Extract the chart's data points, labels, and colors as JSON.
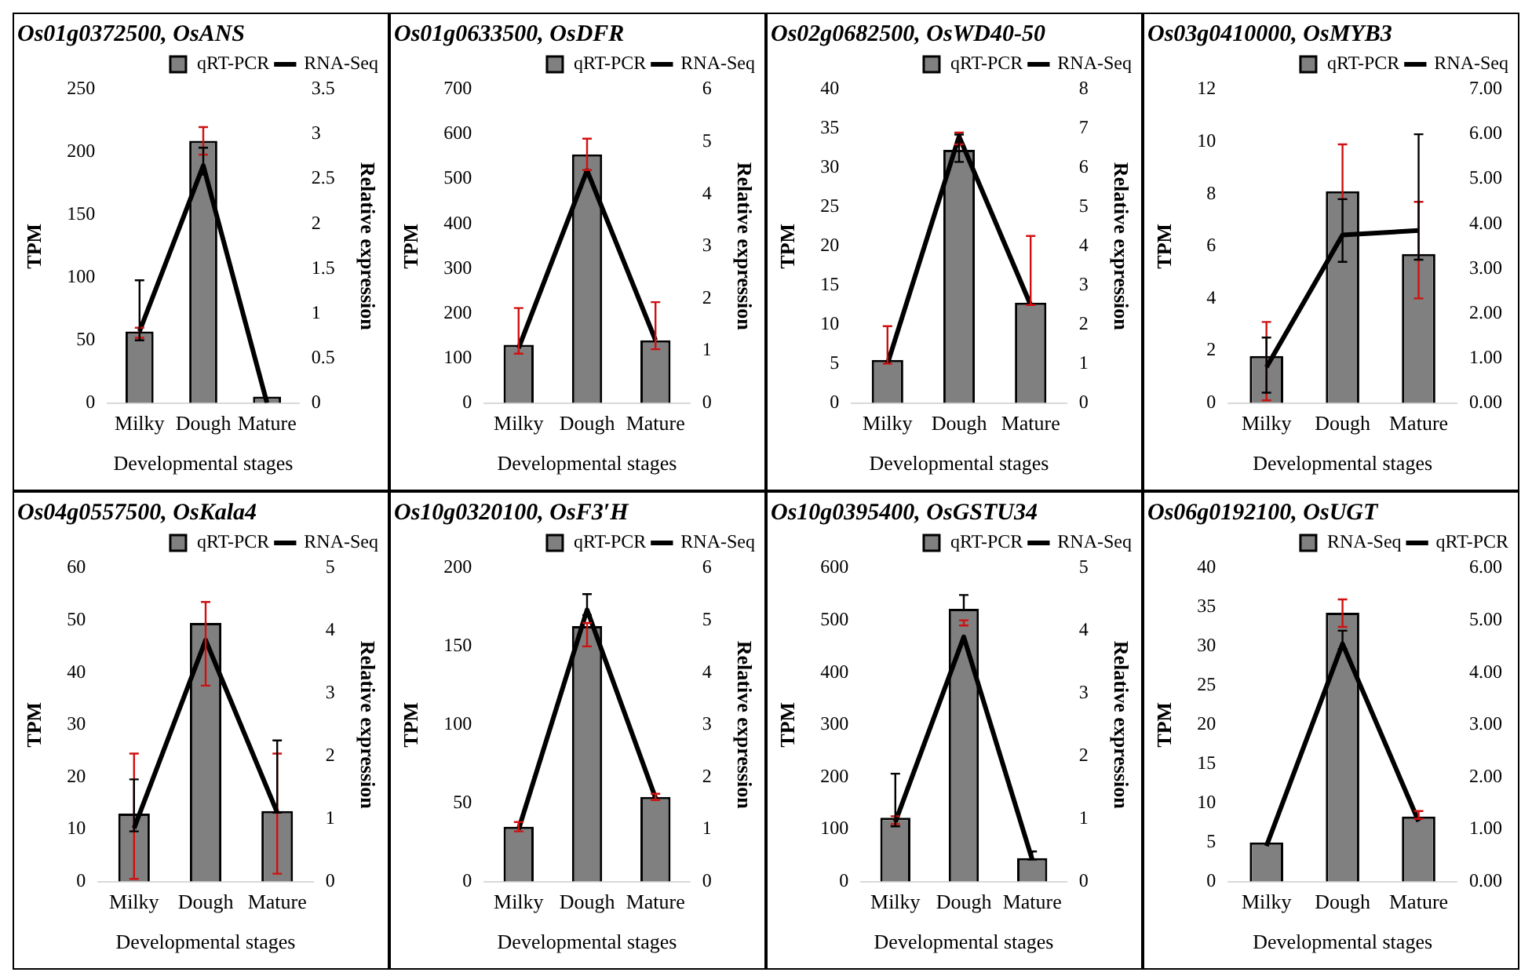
{
  "chart_data": [
    {
      "type": "bar",
      "title": "Os01g0372500, OsANS",
      "categories": [
        "Milky",
        "Dough",
        "Mature"
      ],
      "xlabel": "Developmental stages",
      "ylabel": "TPM",
      "y2label": "Relative expression",
      "ylim": [
        0,
        250
      ],
      "yticks": [
        0,
        50,
        100,
        150,
        200,
        250
      ],
      "y2lim": [
        0,
        3.5
      ],
      "y2ticks": [
        0,
        0.5,
        1,
        1.5,
        2,
        2.5,
        3,
        3.5
      ],
      "legend": "top right",
      "grid": false,
      "series": [
        {
          "name": "qRT-PCR",
          "color": "#808080",
          "values": [
            57,
            209,
            5
          ],
          "errors": [
            [
              52,
              60
            ],
            [
              198,
              220
            ],
            null
          ]
        },
        {
          "name": "RNA-Seq",
          "type": "line",
          "axis": "y2",
          "color": "#000000",
          "values": [
            0.8,
            2.65,
            0
          ],
          "errors": [
            [
              0.7,
              1.37
            ],
            [
              2.55,
              2.85
            ],
            null
          ]
        }
      ]
    },
    {
      "type": "bar",
      "title": "Os01g0633500, OsDFR",
      "categories": [
        "Milky",
        "Dough",
        "Mature"
      ],
      "xlabel": "Developmental stages",
      "ylabel": "TPM",
      "y2label": "Relative expression",
      "ylim": [
        0,
        700
      ],
      "yticks": [
        0,
        100,
        200,
        300,
        400,
        500,
        600,
        700
      ],
      "y2lim": [
        0,
        6
      ],
      "y2ticks": [
        0,
        1,
        2,
        3,
        4,
        5,
        6
      ],
      "legend": "top right",
      "grid": false,
      "series": [
        {
          "name": "qRT-PCR",
          "color": "#808080",
          "values": [
            130,
            555,
            140
          ],
          "errors": [
            [
              110,
              212
            ],
            [
              520,
              590
            ],
            [
              120,
              225
            ]
          ]
        },
        {
          "name": "RNA-Seq",
          "type": "line",
          "axis": "y2",
          "color": "#000000",
          "values": [
            1.05,
            4.45,
            1.2
          ]
        }
      ]
    },
    {
      "type": "bar",
      "title": "Os02g0682500, OsWD40-50",
      "categories": [
        "Milky",
        "Dough",
        "Mature"
      ],
      "xlabel": "Developmental stages",
      "ylabel": "TPM",
      "y2label": "Relative expression",
      "ylim": [
        0,
        40
      ],
      "yticks": [
        0,
        5,
        10,
        15,
        20,
        25,
        30,
        35,
        40
      ],
      "y2lim": [
        0,
        8
      ],
      "y2ticks": [
        0,
        1,
        2,
        3,
        4,
        5,
        6,
        7,
        8
      ],
      "legend": "top right",
      "grid": false,
      "series": [
        {
          "name": "qRT-PCR",
          "color": "#808080",
          "values": [
            5.5,
            32.3,
            12.8
          ],
          "errors": [
            [
              5,
              9.8
            ],
            [
              33,
              34.5
            ],
            [
              12.5,
              21.3
            ]
          ]
        },
        {
          "name": "RNA-Seq",
          "type": "line",
          "axis": "y2",
          "color": "#000000",
          "values": [
            1.0,
            6.8,
            2.5
          ],
          "errors": [
            null,
            [
              6.15,
              6.85
            ],
            null
          ]
        }
      ]
    },
    {
      "type": "bar",
      "title": "Os03g0410000, OsMYB3",
      "categories": [
        "Milky",
        "Dough",
        "Mature"
      ],
      "xlabel": "Developmental stages",
      "ylabel": "TPM",
      "ylim": [
        0,
        12
      ],
      "yticks": [
        0,
        2,
        4,
        6,
        8,
        10,
        12
      ],
      "y2lim": [
        0,
        7
      ],
      "y2ticks": [
        {
          "value": 0,
          "label": "0.00"
        },
        {
          "value": 1,
          "label": "1.00"
        },
        {
          "value": 2,
          "label": "2.00"
        },
        {
          "value": 3,
          "label": "3.00"
        },
        {
          "value": 4,
          "label": "4.00"
        },
        {
          "value": 5,
          "label": "5.00"
        },
        {
          "value": 6,
          "label": "6.00"
        },
        {
          "value": 7,
          "label": "7.00"
        }
      ],
      "legend": "top right",
      "grid": false,
      "series": [
        {
          "name": "qRT-PCR",
          "color": "#808080",
          "values": [
            1.8,
            8.1,
            5.7
          ],
          "errors": [
            [
              0.1,
              3.1
            ],
            [
              7.8,
              9.9
            ],
            [
              4,
              7.7
            ]
          ]
        },
        {
          "name": "RNA-Seq",
          "type": "line",
          "axis": "y2",
          "color": "#000000",
          "values": [
            0.8,
            3.75,
            3.85
          ],
          "errors": [
            [
              0.23,
              1.46
            ],
            [
              3.15,
              4.55
            ],
            [
              3.2,
              6.0
            ]
          ]
        }
      ]
    },
    {
      "type": "bar",
      "title": "Os04g0557500, OsKala4",
      "categories": [
        "Milky",
        "Dough",
        "Mature"
      ],
      "xlabel": "Developmental stages",
      "ylabel": "TPM",
      "y2label": "Relative expression",
      "ylim": [
        0,
        60
      ],
      "yticks": [
        0,
        10,
        20,
        30,
        40,
        50,
        60
      ],
      "y2lim": [
        0,
        5
      ],
      "y2ticks": [
        0,
        1,
        2,
        3,
        4,
        5
      ],
      "legend": "top right",
      "grid": false,
      "series": [
        {
          "name": "qRT-PCR",
          "color": "#808080",
          "values": [
            13,
            49.5,
            13.5
          ],
          "errors": [
            [
              0.5,
              24.5
            ],
            [
              37.5,
              53.5
            ],
            [
              1.5,
              24.5
            ]
          ]
        },
        {
          "name": "RNA-Seq",
          "type": "line",
          "axis": "y2",
          "color": "#000000",
          "values": [
            0.85,
            3.85,
            1.1
          ],
          "errors": [
            [
              0.8,
              1.63
            ],
            null,
            [
              1.1,
              2.25
            ]
          ]
        }
      ]
    },
    {
      "type": "bar",
      "title": "Os10g0320100, OsF3′H",
      "categories": [
        "Milky",
        "Dough",
        "Mature"
      ],
      "xlabel": "Developmental stages",
      "ylabel": "TPM",
      "y2label": "Relative expression",
      "ylim": [
        0,
        200
      ],
      "yticks": [
        0,
        50,
        100,
        150,
        200
      ],
      "y2lim": [
        0,
        6
      ],
      "y2ticks": [
        0,
        1,
        2,
        3,
        4,
        5,
        6
      ],
      "legend": "top right",
      "grid": false,
      "series": [
        {
          "name": "qRT-PCR",
          "color": "#808080",
          "values": [
            35,
            163,
            54
          ],
          "errors": [
            [
              32,
              38
            ],
            [
              150,
              165
            ],
            [
              52,
              56
            ]
          ]
        },
        {
          "name": "RNA-Seq",
          "type": "line",
          "axis": "y2",
          "color": "#000000",
          "values": [
            1.0,
            5.2,
            1.6
          ],
          "errors": [
            null,
            [
              5.1,
              5.5
            ],
            null
          ]
        }
      ]
    },
    {
      "type": "bar",
      "title": "Os10g0395400, OsGSTU34",
      "categories": [
        "Milky",
        "Dough",
        "Mature"
      ],
      "xlabel": "Developmental stages",
      "ylabel": "TPM",
      "y2label": "Relative expression",
      "ylim": [
        0,
        600
      ],
      "yticks": [
        0,
        100,
        200,
        300,
        400,
        500,
        600
      ],
      "y2lim": [
        0,
        5
      ],
      "y2ticks": [
        0,
        1,
        2,
        3,
        4,
        5
      ],
      "legend": "top right",
      "grid": false,
      "series": [
        {
          "name": "qRT-PCR",
          "color": "#808080",
          "values": [
            122,
            522,
            45
          ],
          "errors": [
            [
              110,
              125
            ],
            [
              490,
              500
            ],
            null
          ]
        },
        {
          "name": "RNA-Seq",
          "type": "line",
          "axis": "y2",
          "color": "#000000",
          "values": [
            0.95,
            3.9,
            0.35
          ],
          "errors": [
            [
              0.88,
              1.72
            ],
            [
              4.33,
              4.57
            ],
            [
              0.35,
              0.48
            ]
          ]
        }
      ]
    },
    {
      "type": "bar",
      "title": "Os06g0192100, OsUGT",
      "categories": [
        "Milky",
        "Dough",
        "Mature"
      ],
      "xlabel": "Developmental stages",
      "ylabel": "TPM",
      "ylim": [
        0,
        40
      ],
      "yticks": [
        0,
        5,
        10,
        15,
        20,
        25,
        30,
        35,
        40
      ],
      "y2lim": [
        0,
        6
      ],
      "y2ticks": [
        {
          "value": 0,
          "label": "0.00"
        },
        {
          "value": 1,
          "label": "1.00"
        },
        {
          "value": 2,
          "label": "2.00"
        },
        {
          "value": 3,
          "label": "3.00"
        },
        {
          "value": 4,
          "label": "4.00"
        },
        {
          "value": 5,
          "label": "5.00"
        },
        {
          "value": 6,
          "label": "6.00"
        }
      ],
      "legend": "top right",
      "grid": false,
      "series": [
        {
          "name": "RNA-Seq",
          "color": "#808080",
          "values": [
            5,
            34.3,
            8.3
          ],
          "errors": [
            null,
            [
              32.5,
              36
            ],
            [
              8,
              9
            ]
          ]
        },
        {
          "name": "qRT-PCR",
          "type": "line",
          "axis": "y2",
          "color": "#000000",
          "values": [
            0.68,
            4.55,
            1.15
          ],
          "errors": [
            null,
            [
              4.45,
              4.8
            ],
            null
          ]
        }
      ]
    }
  ]
}
